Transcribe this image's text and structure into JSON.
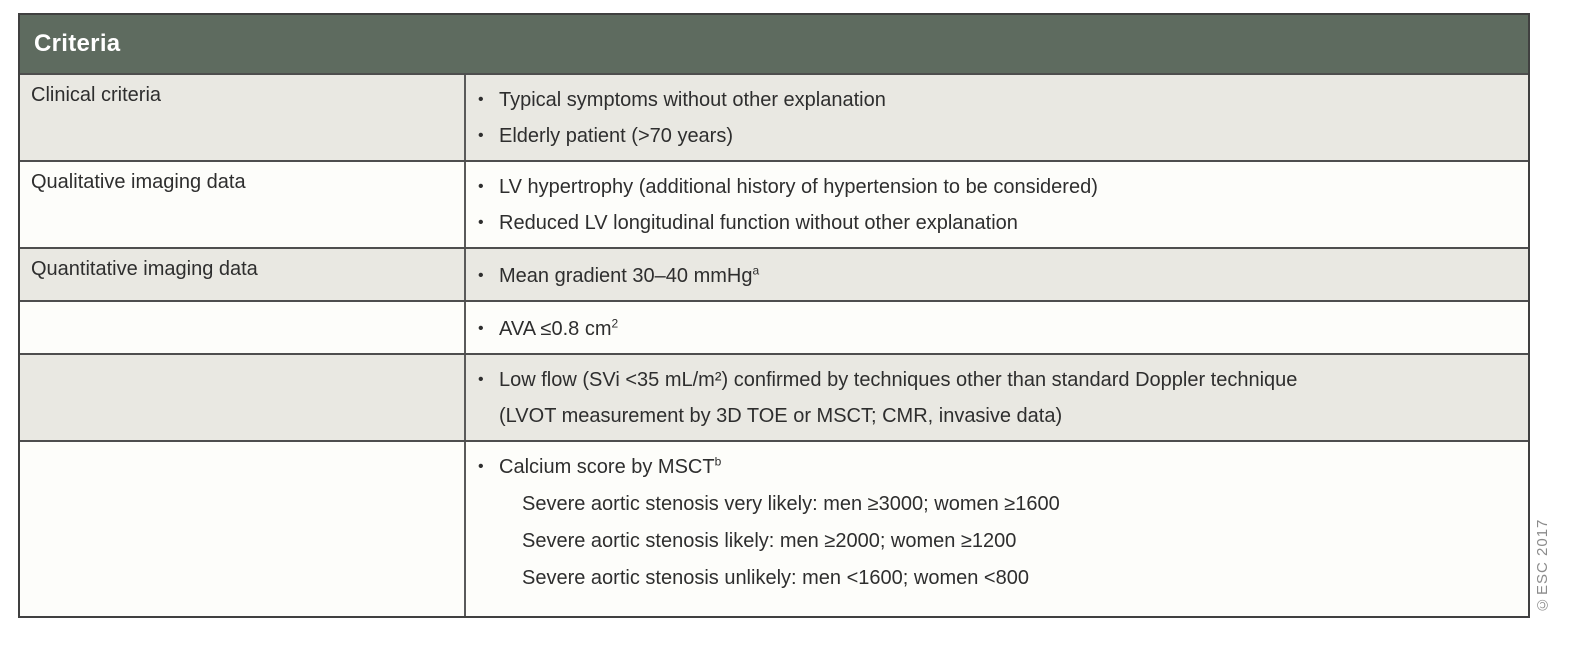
{
  "table": {
    "header": "Criteria",
    "rows": [
      {
        "label": "Clinical criteria",
        "items": [
          {
            "text": "Typical symptoms without other explanation"
          },
          {
            "text": "Elderly patient (>70 years)"
          }
        ]
      },
      {
        "label": "Qualitative imaging data",
        "items": [
          {
            "text": "LV hypertrophy (additional history of hypertension to be considered)"
          },
          {
            "text": "Reduced LV longitudinal function without other explanation"
          }
        ]
      },
      {
        "label": "Quantitative imaging data",
        "items": [
          {
            "text": "Mean gradient 30–40 mmHg",
            "sup": "a"
          }
        ]
      },
      {
        "label": "",
        "items": [
          {
            "text": "AVA ≤0.8 cm",
            "sup": "2"
          }
        ]
      },
      {
        "label": "",
        "items": [
          {
            "text": "Low flow (SVi <35 mL/m²) confirmed by techniques other than standard Doppler technique",
            "text2": "(LVOT measurement by 3D TOE or MSCT; CMR, invasive data)"
          }
        ]
      },
      {
        "label": "",
        "items": [
          {
            "text": "Calcium score by MSCT",
            "sup": "b",
            "sublines": [
              "Severe aortic stenosis very likely: men ≥3000; women ≥1600",
              "Severe aortic stenosis likely: men ≥2000; women ≥1200",
              "Severe aortic stenosis unlikely: men <1600; women <800"
            ]
          }
        ]
      }
    ]
  },
  "watermark": "©ESC 2017",
  "colors": {
    "header_bg": "#5e6b5f",
    "header_text": "#ffffff",
    "row_gray": "#e9e8e2",
    "row_white": "#fdfdfa",
    "border": "#4e4e4e",
    "text": "#2e2e2e",
    "watermark_text": "#8b8b8b"
  }
}
